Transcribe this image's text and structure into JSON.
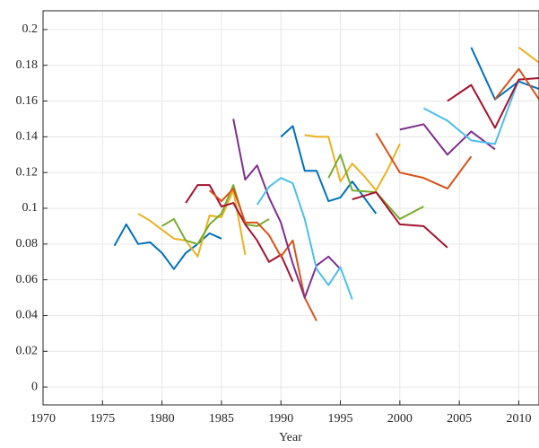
{
  "chart_data": {
    "type": "line",
    "xlabel": "Year",
    "grid": true,
    "xlim": [
      1970,
      2011.7
    ],
    "ylim": [
      -0.01,
      0.2105
    ],
    "xticks": [
      1970,
      1975,
      1980,
      1985,
      1990,
      1995,
      2000,
      2005,
      2010
    ],
    "yticks": [
      0,
      0.02,
      0.04,
      0.06,
      0.08,
      0.1,
      0.12,
      0.14,
      0.16,
      0.18,
      0.2
    ],
    "series": [
      {
        "color": "#0072BD",
        "x": [
          1976,
          1977,
          1978,
          1979,
          1980,
          1981,
          1982,
          1983,
          1984,
          1985
        ],
        "values": [
          0.079,
          0.091,
          0.08,
          0.081,
          0.075,
          0.066,
          0.075,
          0.08,
          0.086,
          0.083
        ]
      },
      {
        "color": "#EDB120",
        "x": [
          1978,
          1979,
          1980,
          1981,
          1982,
          1983,
          1984,
          1985,
          1986,
          1987
        ],
        "values": [
          0.097,
          0.093,
          0.088,
          0.083,
          0.082,
          0.073,
          0.096,
          0.095,
          0.11,
          0.074
        ]
      },
      {
        "color": "#77AC30",
        "x": [
          1980,
          1981,
          1982,
          1983,
          1984,
          1985,
          1986,
          1987,
          1988,
          1989
        ],
        "values": [
          0.09,
          0.094,
          0.082,
          0.08,
          0.091,
          0.097,
          0.113,
          0.091,
          0.09,
          0.094
        ]
      },
      {
        "color": "#A2142F",
        "x": [
          1982,
          1983,
          1984,
          1985,
          1986,
          1987,
          1988,
          1989,
          1990,
          1991
        ],
        "values": [
          0.103,
          0.113,
          0.113,
          0.101,
          0.103,
          0.091,
          0.082,
          0.07,
          0.074,
          0.059
        ]
      },
      {
        "color": "#D95319",
        "x": [
          1984,
          1985,
          1986,
          1987,
          1988,
          1989,
          1990,
          1991,
          1992,
          1993
        ],
        "values": [
          0.11,
          0.104,
          0.111,
          0.092,
          0.092,
          0.085,
          0.073,
          0.082,
          0.05,
          0.037
        ]
      },
      {
        "color": "#7E2F8E",
        "x": [
          1986,
          1987,
          1988,
          1989,
          1990,
          1991,
          1992,
          1993,
          1994,
          1995
        ],
        "values": [
          0.15,
          0.116,
          0.124,
          0.106,
          0.092,
          0.069,
          0.05,
          0.068,
          0.073,
          0.066
        ]
      },
      {
        "color": "#4DBEEE",
        "x": [
          1988,
          1989,
          1990,
          1991,
          1992,
          1993,
          1994,
          1995,
          1996
        ],
        "values": [
          0.102,
          0.112,
          0.117,
          0.114,
          0.094,
          0.066,
          0.057,
          0.067,
          0.049
        ]
      },
      {
        "color": "#0072BD",
        "x": [
          1990,
          1991,
          1992,
          1993,
          1994,
          1995,
          1996,
          1997,
          1998
        ],
        "values": [
          0.14,
          0.146,
          0.121,
          0.121,
          0.104,
          0.106,
          0.115,
          0.106,
          0.097
        ]
      },
      {
        "color": "#EDB120",
        "x": [
          1992,
          1993,
          1994,
          1995,
          1996,
          1997,
          1998,
          1999,
          2000
        ],
        "values": [
          0.141,
          0.14,
          0.14,
          0.115,
          0.125,
          0.118,
          0.11,
          0.122,
          0.136
        ]
      },
      {
        "color": "#77AC30",
        "x": [
          1994,
          1995,
          1996,
          1998,
          2000,
          2002
        ],
        "values": [
          0.117,
          0.13,
          0.11,
          0.109,
          0.094,
          0.101
        ]
      },
      {
        "color": "#A2142F",
        "x": [
          1996,
          1998,
          2000,
          2002,
          2004
        ],
        "values": [
          0.105,
          0.109,
          0.091,
          0.09,
          0.078
        ]
      },
      {
        "color": "#D95319",
        "x": [
          1998,
          2000,
          2002,
          2004,
          2006
        ],
        "values": [
          0.142,
          0.12,
          0.117,
          0.111,
          0.129
        ]
      },
      {
        "color": "#7E2F8E",
        "x": [
          2000,
          2002,
          2004,
          2006,
          2008
        ],
        "values": [
          0.144,
          0.147,
          0.13,
          0.143,
          0.133
        ]
      },
      {
        "color": "#4DBEEE",
        "x": [
          2002,
          2004,
          2006,
          2008,
          2010
        ],
        "values": [
          0.156,
          0.149,
          0.138,
          0.136,
          0.172
        ]
      },
      {
        "color": "#0072BD",
        "x": [
          2006,
          2008,
          2010,
          2012
        ],
        "values": [
          0.19,
          0.161,
          0.171,
          0.166
        ]
      },
      {
        "color": "#A2142F",
        "x": [
          2004,
          2006,
          2008,
          2010,
          2012
        ],
        "values": [
          0.16,
          0.169,
          0.145,
          0.172,
          0.173
        ]
      },
      {
        "color": "#D95319",
        "x": [
          2008,
          2010,
          2012
        ],
        "values": [
          0.161,
          0.178,
          0.158
        ]
      },
      {
        "color": "#EDB120",
        "x": [
          2010,
          2012
        ],
        "values": [
          0.19,
          0.18
        ]
      }
    ]
  }
}
